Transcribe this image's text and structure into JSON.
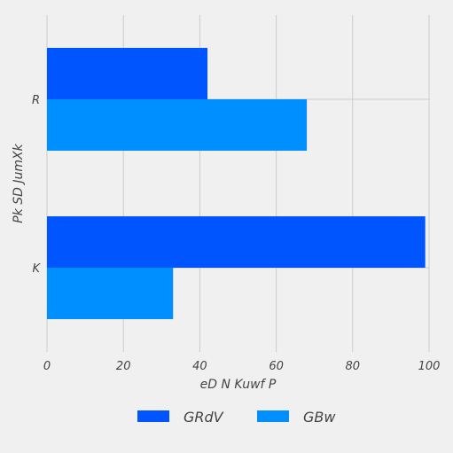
{
  "chart_data": {
    "type": "bar",
    "orientation": "horizontal",
    "categories": [
      "R",
      "K"
    ],
    "series": [
      {
        "name": "GRdV",
        "values": [
          42,
          99
        ],
        "color": "#0055ff"
      },
      {
        "name": "GBw",
        "values": [
          68,
          33
        ],
        "color": "#008fff"
      }
    ],
    "xlabel": "eD N   Kuwf P",
    "ylabel": "Pk SD JumXk",
    "xlim": [
      0,
      100
    ],
    "xticks": [
      0,
      20,
      40,
      60,
      80,
      100
    ],
    "grid": true,
    "legend_position": "bottom-center",
    "background": "#f0f0f0"
  }
}
